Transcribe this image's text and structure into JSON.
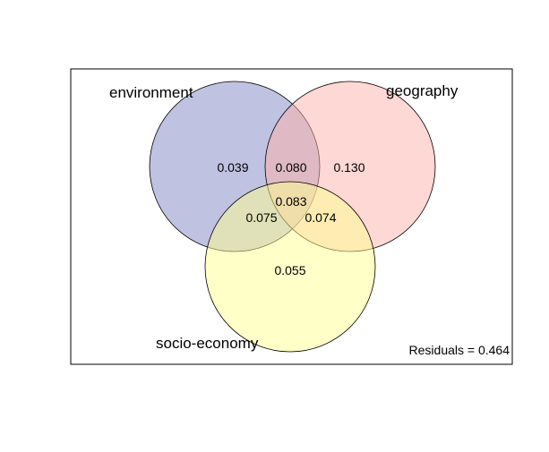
{
  "sets": [
    {
      "label": "environment",
      "color": "#8286C3"
    },
    {
      "label": "geography",
      "color": "#FDB2AA"
    },
    {
      "label": "socio-economy",
      "color": "#FFFF8F"
    }
  ],
  "regions": {
    "environment_only": "0.039",
    "environment_geography": "0.080",
    "geography_only": "0.130",
    "all_three": "0.083",
    "environment_socio": "0.075",
    "geography_socio": "0.074",
    "socio_only": "0.055"
  },
  "residuals": "Residuals = 0.464"
}
